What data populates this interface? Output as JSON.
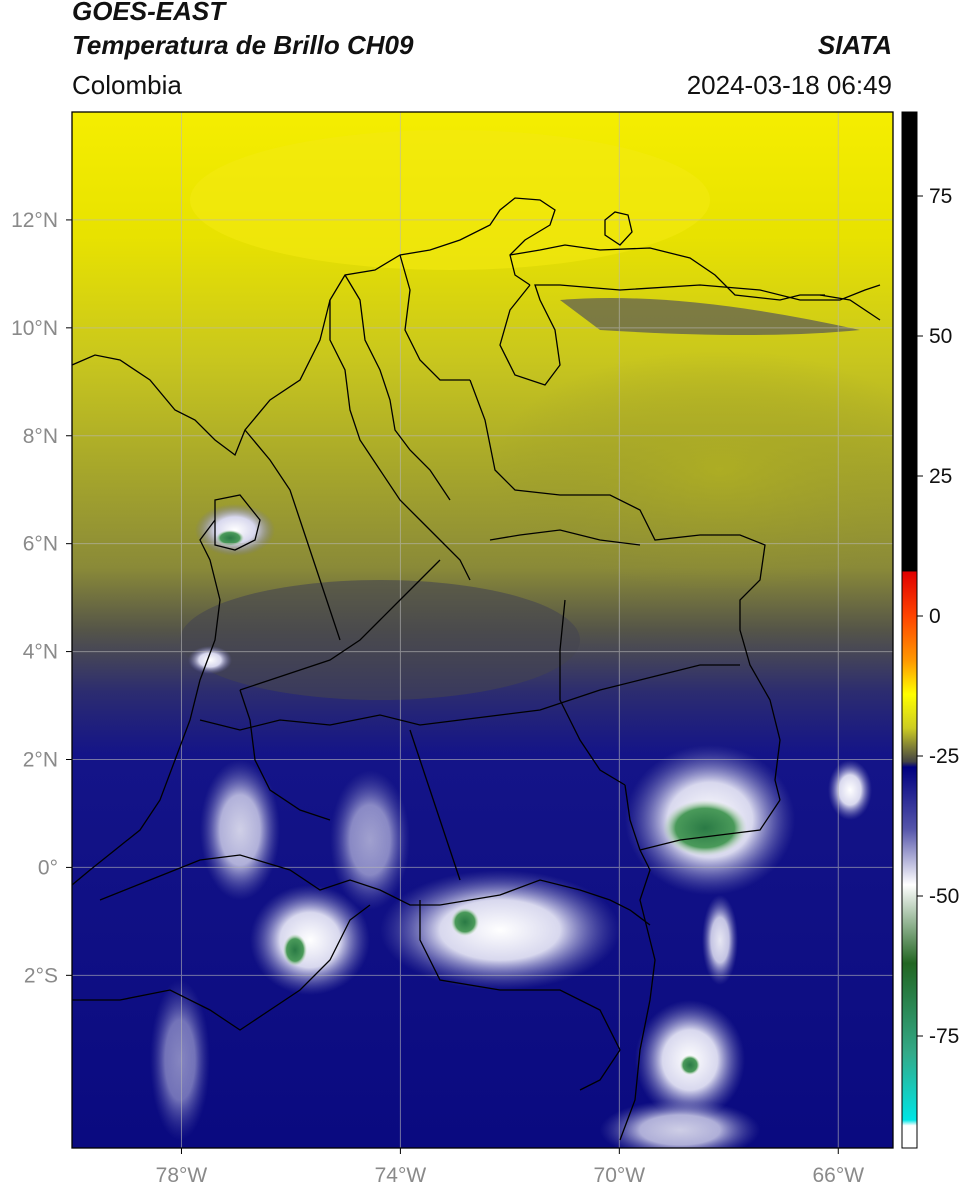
{
  "header": {
    "satellite": "GOES-EAST",
    "product": "Temperatura de Brillo CH09",
    "region": "Colombia",
    "source": "SIATA",
    "datetime": "2024-03-18 06:49"
  },
  "map": {
    "lon_range": [
      -80,
      -65
    ],
    "lat_range": [
      -5.2,
      14
    ],
    "lon_ticks": [
      {
        "value": -78,
        "label": "78°W"
      },
      {
        "value": -74,
        "label": "74°W"
      },
      {
        "value": -70,
        "label": "70°W"
      },
      {
        "value": -66,
        "label": "66°W"
      }
    ],
    "lat_ticks": [
      {
        "value": 12,
        "label": "12°N"
      },
      {
        "value": 10,
        "label": "10°N"
      },
      {
        "value": 8,
        "label": "8°N"
      },
      {
        "value": 6,
        "label": "6°N"
      },
      {
        "value": 4,
        "label": "4°N"
      },
      {
        "value": 2,
        "label": "2°N"
      },
      {
        "value": 0,
        "label": "0°"
      },
      {
        "value": -2,
        "label": "2°S"
      }
    ],
    "gridlines": true
  },
  "colorbar": {
    "range": [
      -95,
      90
    ],
    "ticks": [
      {
        "value": 75,
        "label": "75"
      },
      {
        "value": 50,
        "label": "50"
      },
      {
        "value": 25,
        "label": "25"
      },
      {
        "value": 0,
        "label": "0"
      },
      {
        "value": -25,
        "label": "-25"
      },
      {
        "value": -50,
        "label": "-50"
      },
      {
        "value": -75,
        "label": "-75"
      }
    ],
    "stops": [
      {
        "value": 90,
        "color": "#000000"
      },
      {
        "value": 8,
        "color": "#000000"
      },
      {
        "value": 7.9,
        "color": "#e00000"
      },
      {
        "value": 0,
        "color": "#ff4400"
      },
      {
        "value": -8,
        "color": "#ff9900"
      },
      {
        "value": -14,
        "color": "#ffff00"
      },
      {
        "value": -20,
        "color": "#cccc22"
      },
      {
        "value": -26,
        "color": "#444444"
      },
      {
        "value": -27,
        "color": "#000080"
      },
      {
        "value": -38,
        "color": "#5555aa"
      },
      {
        "value": -48,
        "color": "#ffffff"
      },
      {
        "value": -62,
        "color": "#226622"
      },
      {
        "value": -78,
        "color": "#33aa88"
      },
      {
        "value": -90,
        "color": "#00e5e5"
      },
      {
        "value": -91,
        "color": "#ffffff"
      },
      {
        "value": -95,
        "color": "#ffffff"
      }
    ]
  }
}
